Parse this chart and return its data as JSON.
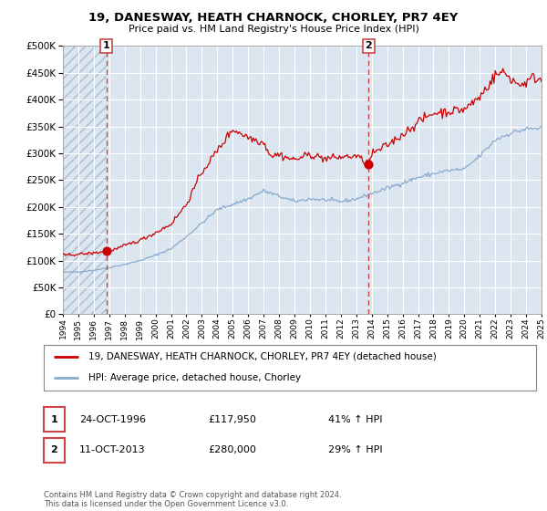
{
  "title1": "19, DANESWAY, HEATH CHARNOCK, CHORLEY, PR7 4EY",
  "title2": "Price paid vs. HM Land Registry's House Price Index (HPI)",
  "plot_bg_color": "#dce6f1",
  "hatch_color": "#b8c8d8",
  "grid_color": "#ffffff",
  "red_line_color": "#cc0000",
  "blue_line_color": "#88aacc",
  "dashed_color": "#cc4444",
  "marker_color": "#cc0000",
  "sale1_year": 1996.82,
  "sale1_price": 117950,
  "sale2_year": 2013.79,
  "sale2_price": 280000,
  "year_start": 1994,
  "year_end": 2025,
  "y_max": 500000,
  "y_ticks": [
    0,
    50000,
    100000,
    150000,
    200000,
    250000,
    300000,
    350000,
    400000,
    450000,
    500000
  ],
  "x_ticks": [
    1994,
    1995,
    1996,
    1997,
    1998,
    1999,
    2000,
    2001,
    2002,
    2003,
    2004,
    2005,
    2006,
    2007,
    2008,
    2009,
    2010,
    2011,
    2012,
    2013,
    2014,
    2015,
    2016,
    2017,
    2018,
    2019,
    2020,
    2021,
    2022,
    2023,
    2024,
    2025
  ],
  "legend_label_red": "19, DANESWAY, HEATH CHARNOCK, CHORLEY, PR7 4EY (detached house)",
  "legend_label_blue": "HPI: Average price, detached house, Chorley",
  "annotation1_label": "1",
  "annotation1_date": "24-OCT-1996",
  "annotation1_price": "£117,950",
  "annotation1_hpi": "41% ↑ HPI",
  "annotation2_label": "2",
  "annotation2_date": "11-OCT-2013",
  "annotation2_price": "£280,000",
  "annotation2_hpi": "29% ↑ HPI",
  "footer": "Contains HM Land Registry data © Crown copyright and database right 2024.\nThis data is licensed under the Open Government Licence v3.0.",
  "blue_anchors": {
    "1994.0": 78000,
    "1995.0": 79000,
    "1996.0": 82000,
    "1997.0": 87000,
    "1998.0": 93000,
    "1999.0": 100000,
    "2000.0": 110000,
    "2001.0": 122000,
    "2002.0": 145000,
    "2003.0": 170000,
    "2004.0": 195000,
    "2005.0": 205000,
    "2006.0": 215000,
    "2007.0": 230000,
    "2008.0": 220000,
    "2009.0": 210000,
    "2010.0": 215000,
    "2011.0": 213000,
    "2012.0": 210000,
    "2013.0": 215000,
    "2014.0": 225000,
    "2015.0": 235000,
    "2016.0": 245000,
    "2017.0": 255000,
    "2018.0": 262000,
    "2019.0": 268000,
    "2020.0": 270000,
    "2021.0": 295000,
    "2022.0": 325000,
    "2023.0": 338000,
    "2024.0": 345000,
    "2025.0": 347000
  },
  "red_anchors": {
    "1994.0": 110000,
    "1995.0": 112000,
    "1996.0": 114000,
    "1996.82": 117950,
    "1997.5": 122000,
    "1998.0": 128000,
    "1999.0": 138000,
    "2000.0": 152000,
    "2001.0": 168000,
    "2002.0": 205000,
    "2003.0": 265000,
    "2004.0": 305000,
    "2005.0": 345000,
    "2006.0": 330000,
    "2007.0": 320000,
    "2007.5": 295000,
    "2008.0": 298000,
    "2008.5": 292000,
    "2009.0": 288000,
    "2010.0": 298000,
    "2011.0": 290000,
    "2012.0": 293000,
    "2013.0": 295000,
    "2013.79": 280000,
    "2014.0": 298000,
    "2015.0": 315000,
    "2016.0": 335000,
    "2017.0": 358000,
    "2018.0": 375000,
    "2019.0": 378000,
    "2020.0": 382000,
    "2021.0": 405000,
    "2022.0": 445000,
    "2022.5": 452000,
    "2023.0": 440000,
    "2023.5": 428000,
    "2024.0": 432000,
    "2024.5": 442000,
    "2025.0": 437000
  }
}
